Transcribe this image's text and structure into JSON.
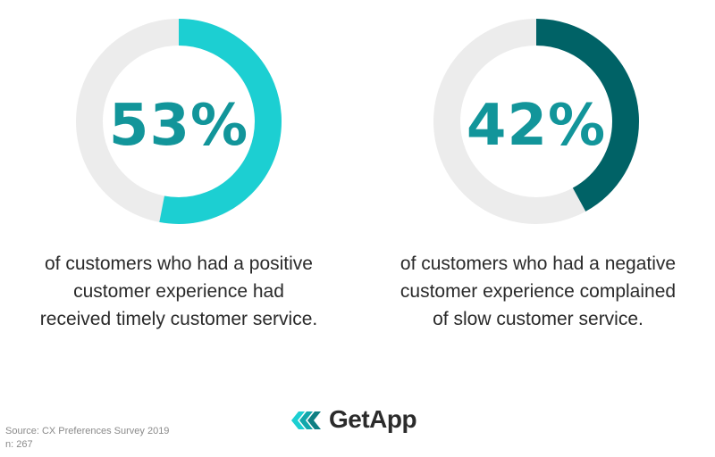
{
  "chart_data": [
    {
      "type": "pie",
      "value_percent": 53,
      "label": "53%",
      "caption": [
        "of customers who had a positive",
        "customer experience had",
        "received timely customer service."
      ],
      "colors": {
        "filled": "#1ccfd2",
        "track": "#ececec",
        "label": "#12959a"
      }
    },
    {
      "type": "pie",
      "value_percent": 42,
      "label": "42%",
      "caption": [
        "of customers who had a negative",
        "customer experience complained",
        "of slow customer service."
      ],
      "colors": {
        "filled": "#006266",
        "track": "#ececec",
        "label": "#12959a"
      }
    }
  ],
  "footer": {
    "source_line": "Source: CX Preferences Survey 2019",
    "n_line": "n: 267",
    "logo_text": "GetApp",
    "logo_icon": "getapp-chevrons-icon",
    "logo_colors": [
      "#1ccfd2",
      "#12a7ab",
      "#0f7f83"
    ]
  }
}
